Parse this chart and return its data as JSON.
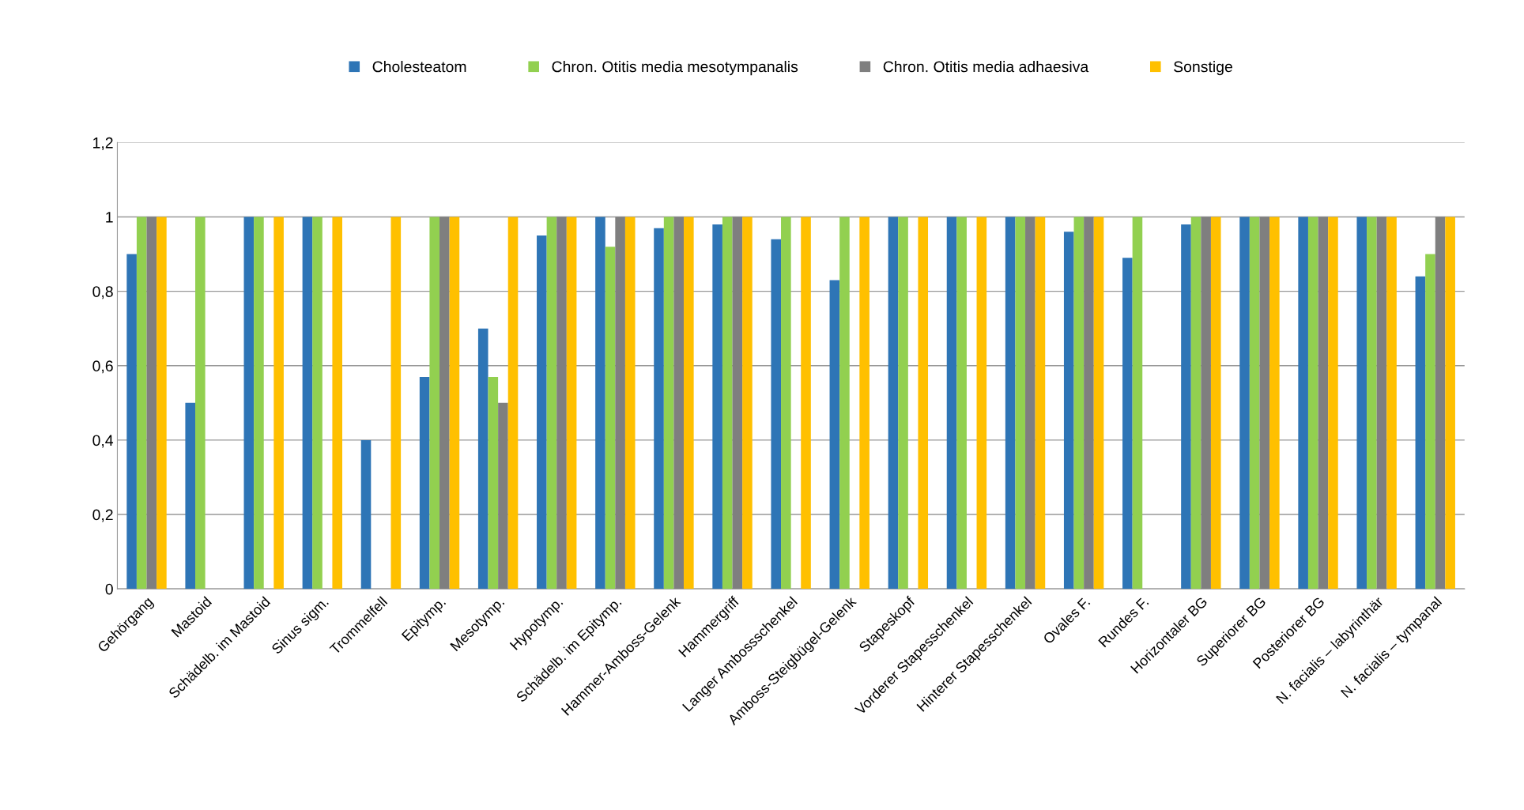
{
  "chart_data": {
    "type": "bar",
    "categories": [
      "Gehörgang",
      "Mastoid",
      "Schädelb. im Mastoid",
      "Sinus sigm.",
      "Trommelfell",
      "Epitymp.",
      "Mesotymp.",
      "Hypotymp.",
      "Schädelb. im Epitymp.",
      "Hammer-Amboss-Gelenk",
      "Hammergriff",
      "Langer Ambossschenkel",
      "Amboss-Steigbügel-Gelenk",
      "Stapeskopf",
      "Vorderer Stapesschenkel",
      "Hinterer Stapesschenkel",
      "Ovales F.",
      "Rundes F.",
      "Horizontaler BG",
      "Superiorer BG",
      "Posteriorer BG",
      "N. facialis – labyrinthär",
      "N. facialis – tympanal"
    ],
    "series": [
      {
        "name": "Cholesteatom",
        "color": "#2e75b6",
        "values": [
          0.9,
          0.5,
          1,
          1,
          0.4,
          0.57,
          0.7,
          0.95,
          1,
          0.97,
          0.98,
          0.94,
          0.83,
          1,
          1,
          1,
          0.96,
          0.89,
          0.98,
          1,
          1,
          1,
          0.84
        ]
      },
      {
        "name": "Chron. Otitis media mesotympanalis",
        "color": "#92d050",
        "values": [
          1,
          1,
          1,
          1,
          null,
          1,
          0.57,
          1,
          0.92,
          1,
          1,
          1,
          1,
          1,
          1,
          1,
          1,
          1,
          1,
          1,
          1,
          1,
          0.9
        ]
      },
      {
        "name": "Chron. Otitis media adhaesiva",
        "color": "#7f7f7f",
        "values": [
          1,
          null,
          null,
          null,
          null,
          1,
          0.5,
          1,
          1,
          1,
          1,
          null,
          null,
          null,
          null,
          1,
          1,
          null,
          1,
          1,
          1,
          1,
          1
        ]
      },
      {
        "name": "Sonstige",
        "color": "#ffc000",
        "values": [
          1,
          null,
          1,
          1,
          1,
          1,
          1,
          1,
          1,
          1,
          1,
          1,
          1,
          1,
          1,
          1,
          1,
          null,
          1,
          1,
          1,
          1,
          1
        ]
      }
    ],
    "ylim": [
      0,
      1.2
    ],
    "yticks": [
      0,
      {
        "value": 0.2,
        "label": "0,2"
      },
      {
        "value": 0.4,
        "label": "0,4"
      },
      {
        "value": 0.6,
        "label": "0,6"
      },
      {
        "value": 0.8,
        "label": "0,8"
      },
      1,
      {
        "value": 1.2,
        "label": "1,2"
      }
    ],
    "grid": "y",
    "legend": "top"
  }
}
